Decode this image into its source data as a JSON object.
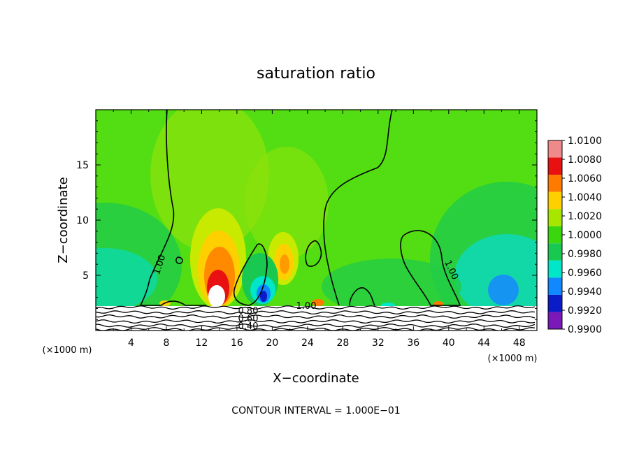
{
  "chart_data": {
    "type": "heatmap",
    "title": "saturation ratio",
    "xlabel": "X−coordinate",
    "ylabel": "Z−coordinate",
    "x_unit_left": "(×1000 m)",
    "x_unit_right": "(×1000 m)",
    "footer": "CONTOUR INTERVAL = 1.000E−01",
    "xlim": [
      0,
      50
    ],
    "ylim": [
      0,
      20
    ],
    "xticks": [
      4,
      8,
      12,
      16,
      20,
      24,
      28,
      32,
      36,
      40,
      44,
      48
    ],
    "xtick_labels": [
      "4",
      "8",
      "12",
      "16",
      "20",
      "24",
      "28",
      "32",
      "36",
      "40",
      "44",
      "48"
    ],
    "yticks": [
      5,
      10,
      15
    ],
    "ytick_labels": [
      "5",
      "10",
      "15"
    ],
    "colorbar": {
      "levels": [
        "1.0100",
        "1.0080",
        "1.0060",
        "1.0040",
        "1.0020",
        "1.0000",
        "0.9980",
        "0.9960",
        "0.9940",
        "0.9920",
        "0.9900"
      ],
      "colors": [
        "#f08a8a",
        "#e81010",
        "#ff7a00",
        "#ffd000",
        "#a8e600",
        "#3ad60e",
        "#18c850",
        "#00e6c8",
        "#1088ff",
        "#0a1cc8",
        "#7a18b8"
      ]
    },
    "contour_labels": [
      "1.00",
      "1.00",
      "1.00",
      "0.80",
      "0.60",
      "0.40"
    ],
    "features": [
      {
        "x": 13.5,
        "z": 3.5,
        "value": 1.01
      },
      {
        "x": 14.0,
        "z": 6.0,
        "value": 1.004
      },
      {
        "x": 21.5,
        "z": 6.5,
        "value": 1.003
      },
      {
        "x": 19.0,
        "z": 3.5,
        "value": 0.994
      },
      {
        "x": 3.0,
        "z": 5.0,
        "value": 0.997
      },
      {
        "x": 46.0,
        "z": 4.0,
        "value": 0.995
      },
      {
        "x": 35.0,
        "z": 14.0,
        "value": 1.001
      }
    ]
  }
}
